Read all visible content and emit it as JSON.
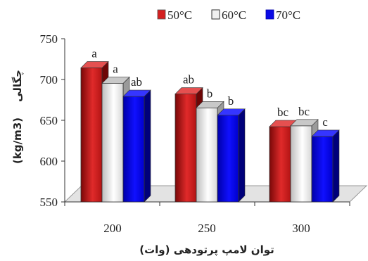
{
  "chart_data": {
    "type": "bar",
    "categories": [
      "200",
      "250",
      "300"
    ],
    "series": [
      {
        "name": "50°C",
        "values": [
          722,
          690,
          650
        ],
        "color": "#d42020",
        "labels": [
          "a",
          "ab",
          "bc"
        ]
      },
      {
        "name": "60°C",
        "values": [
          703,
          673,
          651
        ],
        "color": "#f0f0f0",
        "labels": [
          "a",
          "b",
          "bc"
        ]
      },
      {
        "name": "70°C",
        "values": [
          687,
          664,
          638
        ],
        "color": "#0a0ae6",
        "labels": [
          "ab",
          "b",
          "c"
        ]
      }
    ],
    "ylim": [
      550,
      750
    ],
    "yticks": [
      "550",
      "600",
      "650",
      "700",
      "750"
    ],
    "xlabel": "توان لامپ پرتودهی (وات)",
    "ylabel_fa": "چگالی",
    "ylabel_unit": "(kg/m3)",
    "legend_position": "top-right",
    "grid": false
  }
}
